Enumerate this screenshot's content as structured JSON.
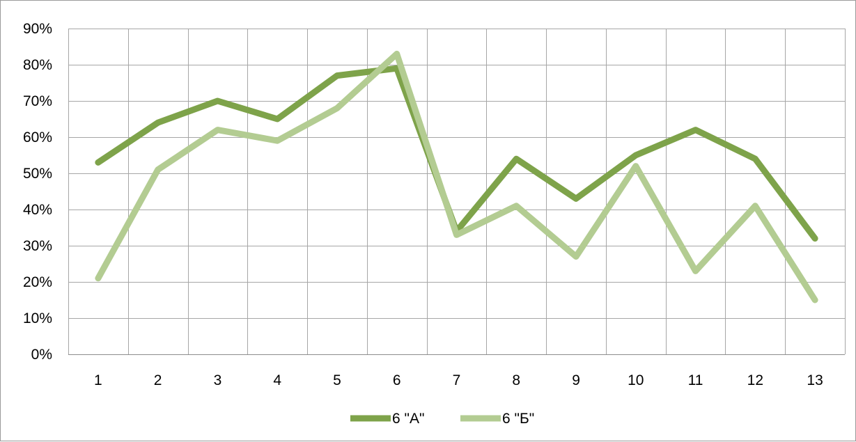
{
  "chart_data": {
    "type": "line",
    "title": "",
    "xlabel": "",
    "ylabel": "",
    "categories": [
      "1",
      "2",
      "3",
      "4",
      "5",
      "6",
      "7",
      "8",
      "9",
      "10",
      "11",
      "12",
      "13"
    ],
    "y_ticks": [
      "0%",
      "10%",
      "20%",
      "30%",
      "40%",
      "50%",
      "60%",
      "70%",
      "80%",
      "90%"
    ],
    "ylim": [
      0,
      0.9
    ],
    "y_format": "percent",
    "grid": true,
    "legend_position": "bottom",
    "series": [
      {
        "name": "6 \"А\"",
        "color": "#7ea34a",
        "values": [
          0.53,
          0.64,
          0.7,
          0.65,
          0.77,
          0.79,
          0.34,
          0.54,
          0.43,
          0.55,
          0.62,
          0.54,
          0.32
        ]
      },
      {
        "name": "6 \"Б\"",
        "color": "#b3cc92",
        "values": [
          0.21,
          0.51,
          0.62,
          0.59,
          0.68,
          0.83,
          0.33,
          0.41,
          0.27,
          0.52,
          0.23,
          0.41,
          0.15
        ]
      }
    ]
  }
}
